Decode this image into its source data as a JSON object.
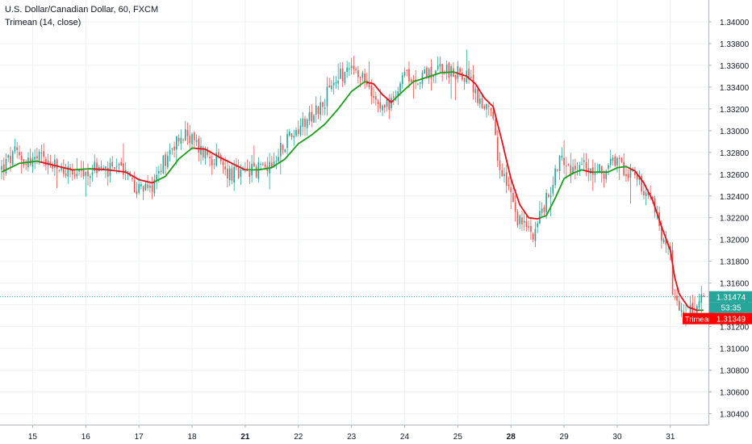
{
  "header": {
    "title": "U.S. Dollar/Canadian Dollar, 60, FXCM",
    "indicator": "Trimean (14, close)"
  },
  "colors": {
    "up": "#26a69a",
    "down": "#ef5350",
    "trimean_up": "#1b9e1b",
    "trimean_down": "#e0121b",
    "last_price_badge": "#26a69a",
    "trimean_badge": "#ff0000",
    "grid": "#eef0f3",
    "axis_text": "#131722"
  },
  "chart_data": {
    "type": "candlestick",
    "ylim": [
      1.303,
      1.342
    ],
    "y_ticks": [
      "1.34000",
      "1.33800",
      "1.33600",
      "1.33400",
      "1.33200",
      "1.33000",
      "1.32800",
      "1.32600",
      "1.32400",
      "1.32200",
      "1.32000",
      "1.31800",
      "1.31600",
      "1.31400",
      "1.31200",
      "1.31000",
      "1.30800",
      "1.30600",
      "1.30400"
    ],
    "x_ticks": [
      {
        "label": "15",
        "bold": false
      },
      {
        "label": "16",
        "bold": false
      },
      {
        "label": "17",
        "bold": false
      },
      {
        "label": "18",
        "bold": false
      },
      {
        "label": "21",
        "bold": true
      },
      {
        "label": "22",
        "bold": false
      },
      {
        "label": "23",
        "bold": false
      },
      {
        "label": "24",
        "bold": false
      },
      {
        "label": "25",
        "bold": false
      },
      {
        "label": "28",
        "bold": true
      },
      {
        "label": "29",
        "bold": false
      },
      {
        "label": "30",
        "bold": false
      },
      {
        "label": "31",
        "bold": false
      }
    ],
    "x_tick_index": [
      14,
      38,
      62,
      86,
      110,
      134,
      158,
      182,
      206,
      230,
      254,
      278,
      302
    ],
    "n_bars": 318,
    "price_anchors": [
      [
        0,
        1.3265
      ],
      [
        6,
        1.3278
      ],
      [
        12,
        1.3272
      ],
      [
        18,
        1.3274
      ],
      [
        24,
        1.3266
      ],
      [
        30,
        1.3262
      ],
      [
        36,
        1.3257
      ],
      [
        42,
        1.3266
      ],
      [
        48,
        1.3262
      ],
      [
        54,
        1.3268
      ],
      [
        60,
        1.325
      ],
      [
        66,
        1.3243
      ],
      [
        72,
        1.3268
      ],
      [
        78,
        1.329
      ],
      [
        84,
        1.3296
      ],
      [
        90,
        1.3282
      ],
      [
        96,
        1.3275
      ],
      [
        102,
        1.3262
      ],
      [
        108,
        1.3258
      ],
      [
        114,
        1.3264
      ],
      [
        120,
        1.3268
      ],
      [
        126,
        1.3286
      ],
      [
        132,
        1.33
      ],
      [
        138,
        1.3313
      ],
      [
        144,
        1.3322
      ],
      [
        150,
        1.3343
      ],
      [
        156,
        1.3356
      ],
      [
        160,
        1.335
      ],
      [
        166,
        1.3342
      ],
      [
        172,
        1.3325
      ],
      [
        176,
        1.3323
      ],
      [
        180,
        1.335
      ],
      [
        186,
        1.3348
      ],
      [
        192,
        1.3353
      ],
      [
        198,
        1.3358
      ],
      [
        204,
        1.3355
      ],
      [
        210,
        1.335
      ],
      [
        214,
        1.3335
      ],
      [
        218,
        1.3318
      ],
      [
        222,
        1.3312
      ],
      [
        224,
        1.3268
      ],
      [
        228,
        1.3252
      ],
      [
        232,
        1.3222
      ],
      [
        236,
        1.3212
      ],
      [
        240,
        1.3208
      ],
      [
        244,
        1.3226
      ],
      [
        248,
        1.3245
      ],
      [
        252,
        1.3278
      ],
      [
        256,
        1.3263
      ],
      [
        260,
        1.3266
      ],
      [
        264,
        1.3268
      ],
      [
        270,
        1.3262
      ],
      [
        276,
        1.3268
      ],
      [
        282,
        1.3266
      ],
      [
        288,
        1.3253
      ],
      [
        292,
        1.3244
      ],
      [
        296,
        1.322
      ],
      [
        300,
        1.3192
      ],
      [
        302,
        1.3195
      ],
      [
        303,
        1.3143
      ],
      [
        306,
        1.3138
      ],
      [
        310,
        1.313
      ],
      [
        314,
        1.3137
      ],
      [
        317,
        1.3147
      ]
    ],
    "trimean_anchors": [
      [
        0,
        1.3262
      ],
      [
        8,
        1.327
      ],
      [
        16,
        1.3272
      ],
      [
        24,
        1.3268
      ],
      [
        32,
        1.3264
      ],
      [
        40,
        1.3265
      ],
      [
        48,
        1.3264
      ],
      [
        56,
        1.3262
      ],
      [
        62,
        1.3255
      ],
      [
        68,
        1.3252
      ],
      [
        74,
        1.3258
      ],
      [
        80,
        1.3274
      ],
      [
        86,
        1.3284
      ],
      [
        92,
        1.3283
      ],
      [
        98,
        1.3276
      ],
      [
        104,
        1.327
      ],
      [
        110,
        1.3264
      ],
      [
        116,
        1.3264
      ],
      [
        122,
        1.3266
      ],
      [
        128,
        1.3274
      ],
      [
        134,
        1.3288
      ],
      [
        140,
        1.3296
      ],
      [
        146,
        1.3306
      ],
      [
        152,
        1.332
      ],
      [
        158,
        1.3336
      ],
      [
        164,
        1.3345
      ],
      [
        168,
        1.3343
      ],
      [
        172,
        1.3333
      ],
      [
        176,
        1.3326
      ],
      [
        180,
        1.3334
      ],
      [
        186,
        1.3345
      ],
      [
        192,
        1.3349
      ],
      [
        198,
        1.3353
      ],
      [
        204,
        1.3354
      ],
      [
        210,
        1.335
      ],
      [
        214,
        1.3343
      ],
      [
        218,
        1.333
      ],
      [
        222,
        1.3322
      ],
      [
        226,
        1.329
      ],
      [
        230,
        1.3256
      ],
      [
        234,
        1.3232
      ],
      [
        238,
        1.322
      ],
      [
        242,
        1.3219
      ],
      [
        246,
        1.3222
      ],
      [
        250,
        1.3238
      ],
      [
        254,
        1.3256
      ],
      [
        258,
        1.3261
      ],
      [
        262,
        1.3264
      ],
      [
        266,
        1.3262
      ],
      [
        270,
        1.3262
      ],
      [
        274,
        1.3262
      ],
      [
        278,
        1.3266
      ],
      [
        282,
        1.3267
      ],
      [
        286,
        1.3263
      ],
      [
        290,
        1.3252
      ],
      [
        294,
        1.3236
      ],
      [
        298,
        1.3212
      ],
      [
        302,
        1.319
      ],
      [
        304,
        1.3165
      ],
      [
        306,
        1.315
      ],
      [
        310,
        1.3138
      ],
      [
        314,
        1.3135
      ],
      [
        317,
        1.3135
      ]
    ],
    "last_price": "1.31474",
    "countdown": "53:35",
    "trimean_label": "Trimean",
    "trimean_value": "1.31349"
  }
}
